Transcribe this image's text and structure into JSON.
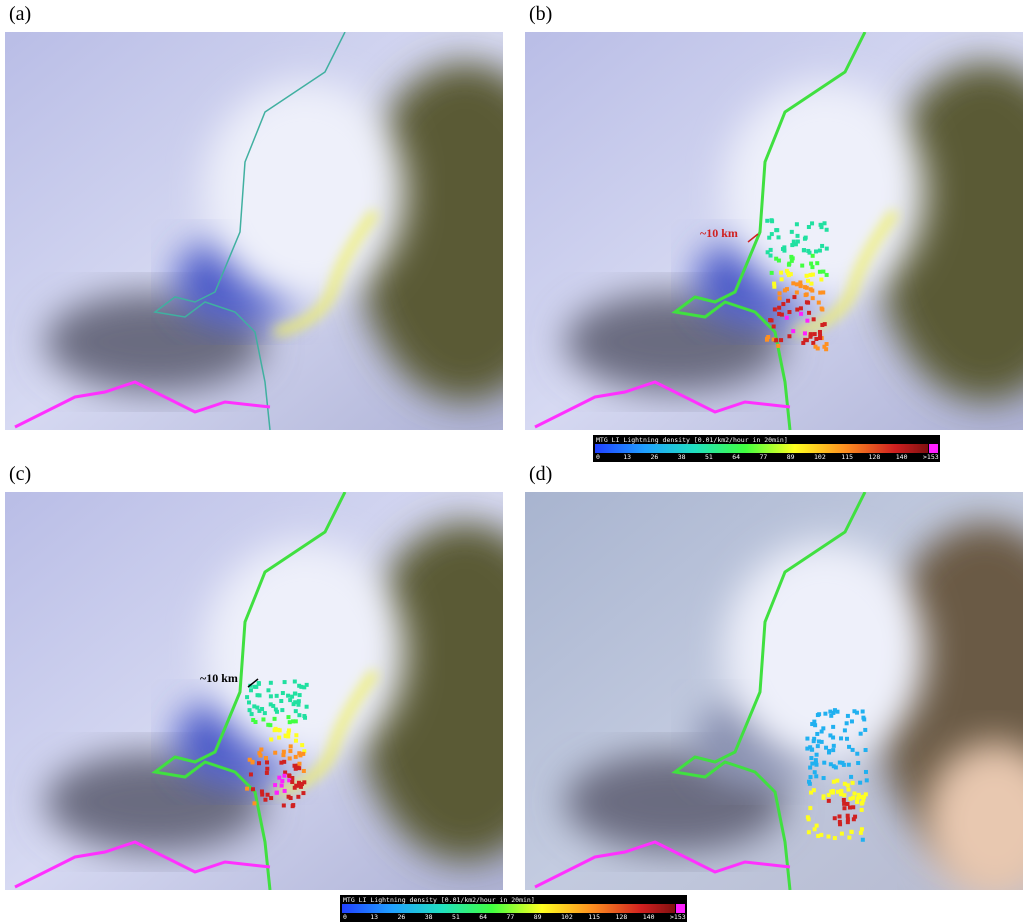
{
  "panels": [
    {
      "label": "(a)"
    },
    {
      "label": "(b)",
      "annotation": "~10 km"
    },
    {
      "label": "(c)",
      "annotation": "~10 km"
    },
    {
      "label": "(d)"
    }
  ],
  "colorbars": [
    {
      "title": "MTG LI Lightning density [0.01/km2/hour in 20min]",
      "ticks": [
        "0",
        "13",
        "26",
        "38",
        "51",
        "64",
        "77",
        "89",
        "102",
        "115",
        "128",
        "140",
        ">153"
      ]
    },
    {
      "title": "MTG LI Lightning density [0.01/km2/hour in 20min]",
      "ticks": [
        "0",
        "13",
        "26",
        "38",
        "51",
        "64",
        "77",
        "89",
        "102",
        "115",
        "128",
        "140",
        ">153"
      ]
    }
  ]
}
